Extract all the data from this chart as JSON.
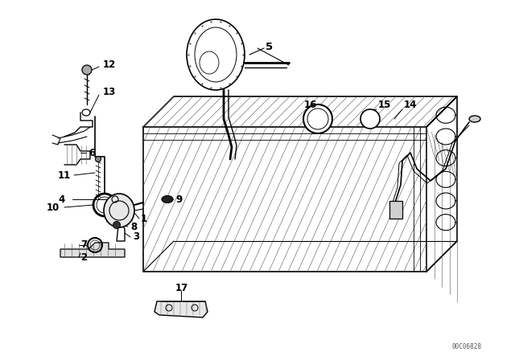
{
  "bg_color": "#ffffff",
  "line_color": "#000000",
  "fig_width": 6.4,
  "fig_height": 4.48,
  "dpi": 100,
  "watermark": "00C06828"
}
